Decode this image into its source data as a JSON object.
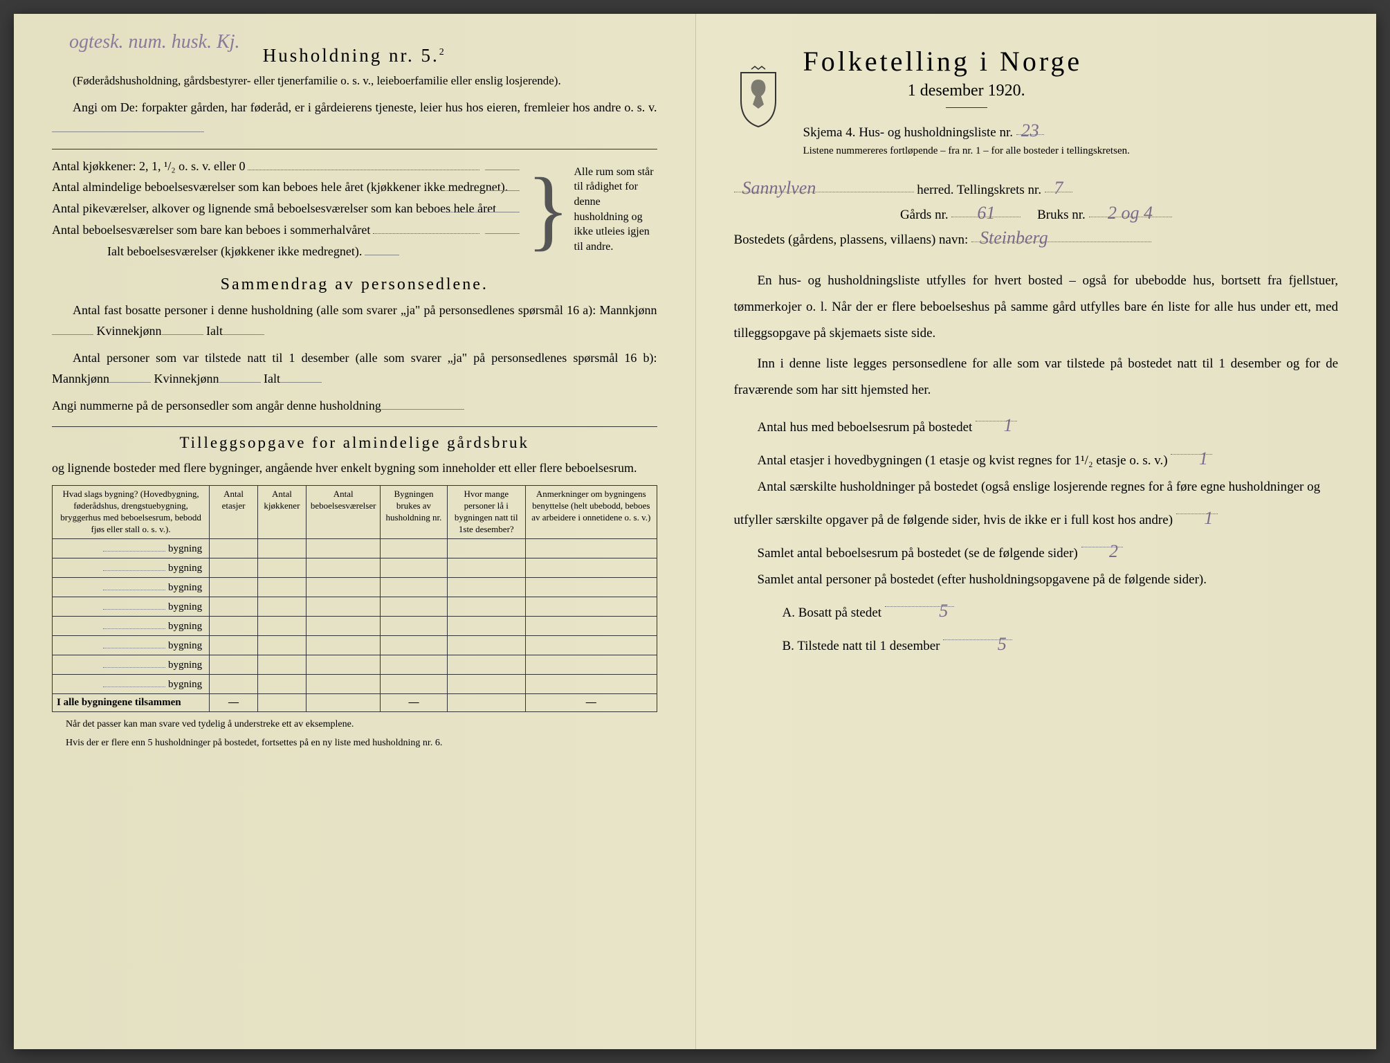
{
  "left": {
    "handwritten_top": "ogtesk. num. husk. Kj.",
    "title": "Husholdning nr. 5.",
    "title_sup": "2",
    "sub1": "(Føderådshusholdning, gårdsbestyrer- eller tjenerfamilie o. s. v., leieboerfamilie eller enslig losjerende).",
    "sub2": "Angi om De: forpakter gården, har føderåd, er i gårdeierens tjeneste, leier hus hos eieren, fremleier hos andre o. s. v.",
    "kitchen_line": "Antal kjøkkener: 2, 1, ¹/₂ o. s. v. eller 0",
    "rooms": [
      "Antal almindelige beboelsesværelser som kan beboes hele året (kjøkkener ikke medregnet).",
      "Antal pikeværelser, alkover og lignende små beboelsesværelser som kan beboes hele året",
      "Antal beboelsesværelser som bare kan beboes i sommerhalvåret"
    ],
    "rooms_total": "Ialt beboelsesværelser (kjøkkener ikke medregnet).",
    "bracket_text": "Alle rum som står til rådighet for denne husholdning og ikke utleies igjen til andre.",
    "section2_title": "Sammendrag av personsedlene.",
    "s2_l1": "Antal fast bosatte personer i denne husholdning (alle som svarer „ja\" på personsedlenes spørsmål 16 a): Mannkjønn",
    "s2_kv": "Kvinnekjønn",
    "s2_ialt": "Ialt",
    "s2_l2": "Antal personer som var tilstede natt til 1 desember (alle som svarer „ja\" på personsedlenes spørsmål 16 b): Mannkjønn",
    "s2_l3": "Angi nummerne på de personsedler som angår denne husholdning",
    "section3_title": "Tilleggsopgave for almindelige gårdsbruk",
    "s3_sub": "og lignende bosteder med flere bygninger, angående hver enkelt bygning som inneholder ett eller flere beboelsesrum.",
    "table": {
      "headers": [
        "Hvad slags bygning?\n(Hovedbygning, føderådshus, drengstuebygning, bryggerhus med beboelsesrum, bebodd fjøs eller stall o. s. v.).",
        "Antal etasjer",
        "Antal kjøkkener",
        "Antal beboelsesværelser",
        "Bygningen brukes av husholdning nr.",
        "Hvor mange personer lå i bygningen natt til 1ste desember?",
        "Anmerkninger om bygningens benyttelse (helt ubebodd, beboes av arbeidere i onnetidene o. s. v.)"
      ],
      "row_label": "bygning",
      "row_count": 8,
      "total_label": "I alle bygningene tilsammen"
    },
    "foot1": "Når det passer kan man svare ved tydelig å understreke ett av eksemplene.",
    "foot2": "Hvis der er flere enn 5 husholdninger på bostedet, fortsettes på en ny liste med husholdning nr. 6."
  },
  "right": {
    "title": "Folketelling i Norge",
    "date": "1 desember 1920.",
    "skjema": "Skjema 4.  Hus- og husholdningsliste nr.",
    "skjema_val": "23",
    "listene": "Listene nummereres fortløpende – fra nr. 1 – for alle bosteder i tellingskretsen.",
    "herred_val": "Sannylven",
    "herred_lbl": "herred.   Tellingskrets nr.",
    "krets_val": "7",
    "gards_lbl": "Gårds nr.",
    "gards_val": "61",
    "bruks_lbl": "Bruks nr.",
    "bruks_val": "2 og 4",
    "bosted_lbl": "Bostedets (gårdens, plassens, villaens) navn:",
    "bosted_val": "Steinberg",
    "p1": "En hus- og husholdningsliste utfylles for hvert bosted – også for ubebodde hus, bortsett fra fjellstuer, tømmerkojer o. l. Når der er flere beboelseshus på samme gård utfylles bare én liste for alle hus under ett, med tilleggsopgave på skjemaets siste side.",
    "p2": "Inn i denne liste legges personsedlene for alle som var tilstede på bostedet natt til 1 desember og for de fraværende som har sitt hjemsted her.",
    "l1": "Antal hus med beboelsesrum på bostedet",
    "l1_val": "1",
    "l2a": "Antal etasjer i hovedbygningen (1 etasje og kvist regnes for 1¹/₂ etasje o. s. v.)",
    "l2_val": "1",
    "l3a": "Antal særskilte husholdninger på bostedet (også enslige losjerende regnes for å føre egne husholdninger og utfyller særskilte opgaver på de følgende sider, hvis de ikke er i full kost hos andre)",
    "l3_val": "1",
    "l4": "Samlet antal beboelsesrum på bostedet (se de følgende sider)",
    "l4_val": "2",
    "l5": "Samlet antal personer på bostedet (efter husholdningsopgavene på de følgende sider).",
    "la": "A.  Bosatt på stedet",
    "la_val": "5",
    "lb": "B.  Tilstede natt til 1 desember",
    "lb_val": "5"
  },
  "colors": {
    "paper": "#e8e4c8",
    "ink": "#2a2a2a",
    "pencil": "#8a7a9a"
  }
}
